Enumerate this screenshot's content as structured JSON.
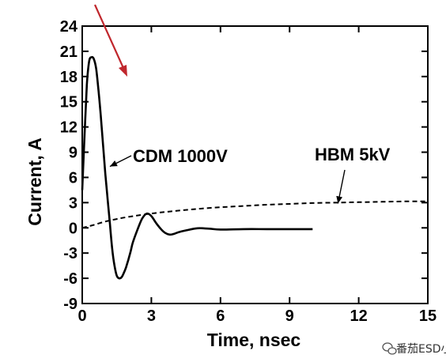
{
  "chart_data": {
    "type": "line",
    "title": "",
    "xlabel": "Time, nsec",
    "ylabel": "Current, A",
    "xlim": [
      0,
      15
    ],
    "ylim": [
      -9,
      24
    ],
    "xticks": [
      0,
      3,
      6,
      9,
      12,
      15
    ],
    "yticks": [
      -9,
      -6,
      -3,
      0,
      3,
      6,
      9,
      12,
      15,
      18,
      21,
      24
    ],
    "grid": false,
    "series": [
      {
        "name": "CDM 1000V",
        "style": "solid",
        "x": [
          0,
          0.1,
          0.2,
          0.3,
          0.4,
          0.5,
          0.6,
          0.7,
          0.8,
          0.9,
          1.0,
          1.1,
          1.2,
          1.3,
          1.4,
          1.5,
          1.6,
          1.7,
          1.8,
          1.9,
          2.0,
          2.1,
          2.2,
          2.4,
          2.6,
          2.8,
          3.0,
          3.2,
          3.4,
          3.6,
          3.8,
          4.0,
          4.2,
          4.5,
          5.0,
          5.5,
          6.0,
          7.0,
          8.0,
          9.0,
          10.0
        ],
        "y": [
          4.5,
          11,
          17,
          19.8,
          20.3,
          20.1,
          19.0,
          16.5,
          13.5,
          10.0,
          6.5,
          3.5,
          0.5,
          -2.5,
          -4.5,
          -5.7,
          -6.0,
          -5.9,
          -5.4,
          -4.7,
          -3.8,
          -2.8,
          -1.7,
          -0.2,
          1.1,
          1.7,
          1.4,
          0.6,
          -0.1,
          -0.6,
          -0.8,
          -0.7,
          -0.5,
          -0.3,
          -0.05,
          -0.1,
          -0.2,
          -0.15,
          -0.15,
          -0.15,
          -0.15
        ]
      },
      {
        "name": "HBM 5kV",
        "style": "dashed",
        "x": [
          0,
          0.5,
          1,
          1.5,
          2,
          3,
          4,
          5,
          6,
          7,
          8,
          9,
          10,
          11,
          12,
          13,
          14,
          15
        ],
        "y": [
          0,
          0.35,
          0.75,
          1.05,
          1.3,
          1.7,
          2.0,
          2.25,
          2.45,
          2.6,
          2.75,
          2.85,
          2.95,
          3.0,
          3.05,
          3.1,
          3.15,
          3.15
        ]
      }
    ],
    "annotations": [
      {
        "text": "CDM 1000V",
        "arrow_to": [
          1.2,
          7.3
        ]
      },
      {
        "text": "HBM 5kV",
        "arrow_to": [
          11.1,
          2.9
        ]
      }
    ]
  },
  "watermark": {
    "text": "番茄ESD小",
    "icon": "wechat-icon"
  },
  "colors": {
    "background": "#ffffff",
    "ink": "#000000",
    "pointer_arrow": "#c0272d"
  }
}
